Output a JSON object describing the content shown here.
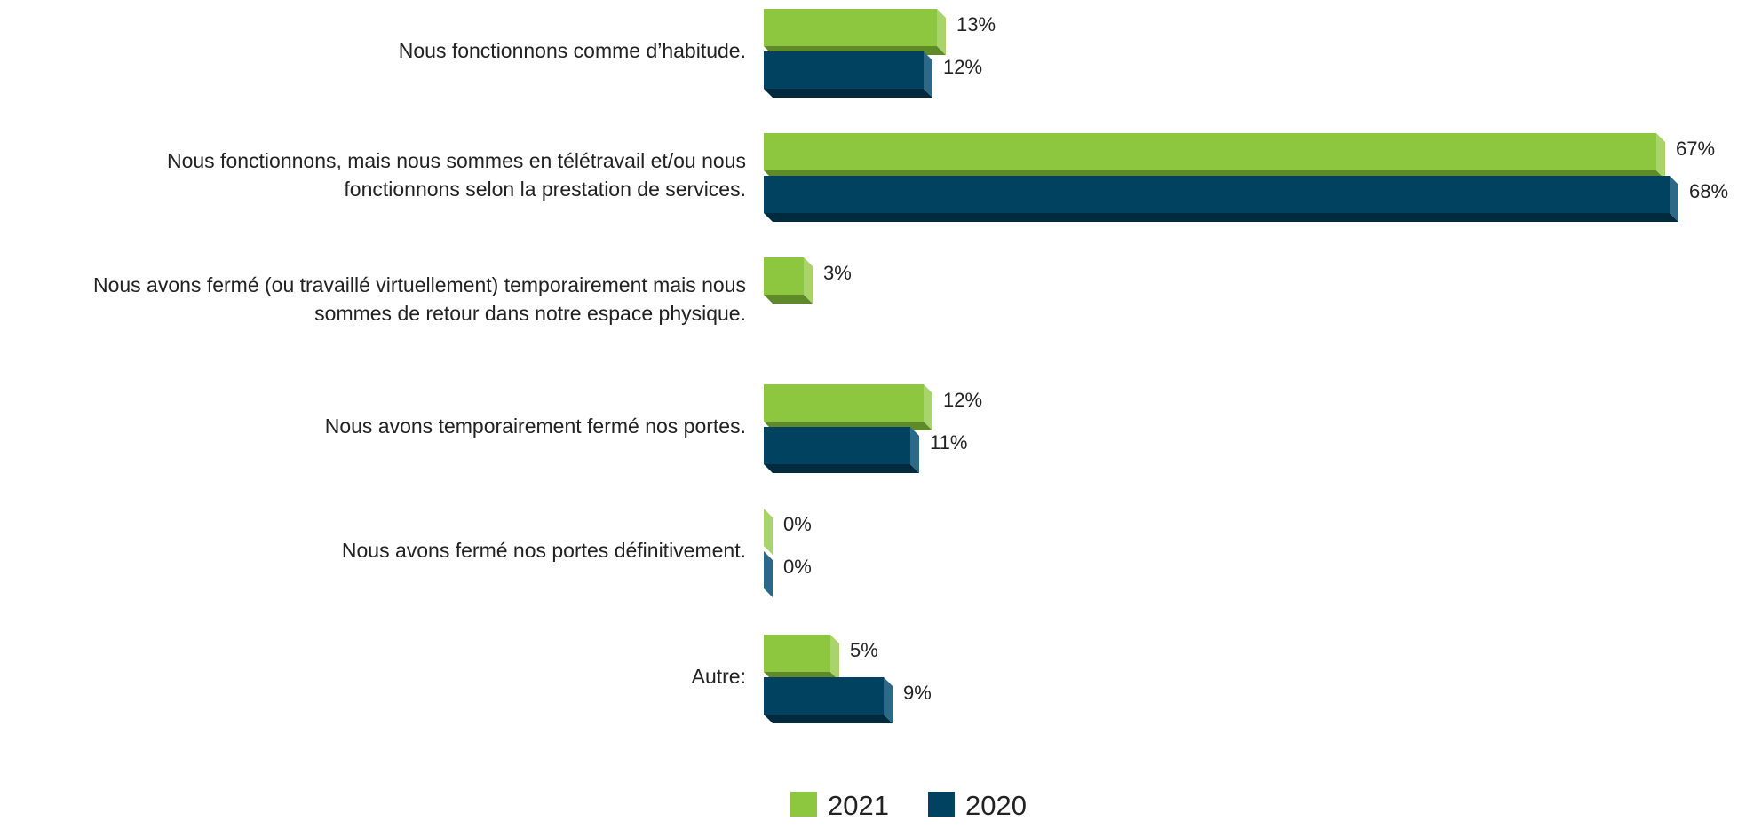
{
  "chart_data": {
    "type": "bar",
    "orientation": "horizontal",
    "categories": [
      [
        "Nous fonctionnons comme d’habitude."
      ],
      [
        "Nous fonctionnons, mais nous sommes en télétravail et/ou nous",
        "fonctionnons selon la prestation de services."
      ],
      [
        "Nous avons fermé (ou travaillé virtuellement) temporairement mais nous",
        "sommes de retour dans notre espace physique."
      ],
      [
        "Nous avons temporairement fermé nos portes."
      ],
      [
        "Nous avons fermé nos portes définitivement."
      ],
      [
        "Autre:"
      ]
    ],
    "series": [
      {
        "name": "2021",
        "values": [
          13,
          67,
          3,
          12,
          0,
          5
        ],
        "labels": [
          "13%",
          "67%",
          "3%",
          "12%",
          "0%",
          "5%"
        ],
        "color": "#8dc63f",
        "side_color": "#a9d46b",
        "bottom_color": "#5e8a2a"
      },
      {
        "name": "2020",
        "values": [
          12,
          68,
          null,
          11,
          0,
          9
        ],
        "labels": [
          "12%",
          "68%",
          "",
          "11%",
          "0%",
          "9%"
        ],
        "color": "#00425f",
        "side_color": "#2e6887",
        "bottom_color": "#002b3f"
      }
    ],
    "xlim": [
      0,
      68
    ],
    "grid": false,
    "legend": "bottom-center",
    "legend_items": [
      "2021",
      "2020"
    ]
  }
}
